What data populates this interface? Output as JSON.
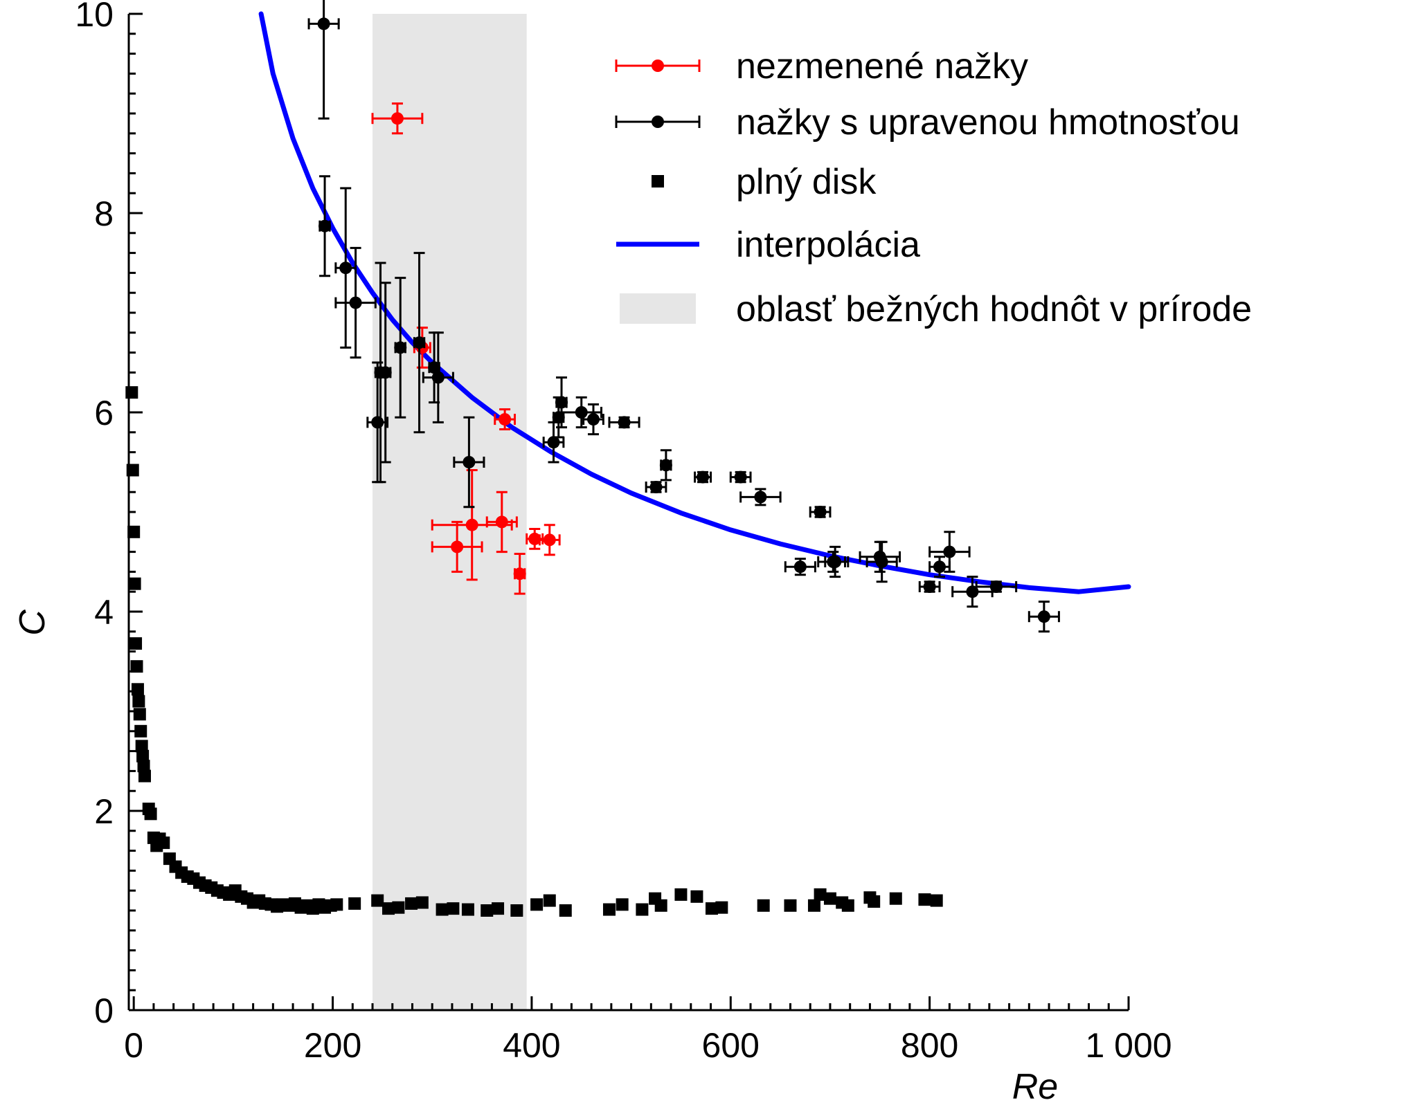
{
  "chart_data": {
    "type": "scatter",
    "title": "",
    "xlabel": "Re",
    "ylabel": "C",
    "xlim": [
      -5,
      1000
    ],
    "ylim": [
      0,
      10
    ],
    "x_ticks": [
      {
        "value": 0,
        "label": "0"
      },
      {
        "value": 200,
        "label": "200"
      },
      {
        "value": 400,
        "label": "400"
      },
      {
        "value": 600,
        "label": "600"
      },
      {
        "value": 800,
        "label": "800"
      },
      {
        "value": 1000,
        "label": "1 000"
      }
    ],
    "y_ticks": [
      {
        "value": 0,
        "label": "0"
      },
      {
        "value": 2,
        "label": "2"
      },
      {
        "value": 4,
        "label": "4"
      },
      {
        "value": 6,
        "label": "6"
      },
      {
        "value": 8,
        "label": "8"
      },
      {
        "value": 10,
        "label": "10"
      }
    ],
    "grid": false,
    "legend_position": "top-right",
    "colors": {
      "red": "#ff0000",
      "black": "#000000",
      "blue": "#0000ff",
      "band": "#e6e6e6"
    },
    "shaded_region": {
      "name": "oblasť bežných hodnôt v prírode",
      "x": [
        240,
        395
      ],
      "color": "#e6e6e6"
    },
    "series": [
      {
        "name": "nezmenené nažky",
        "kind": "errorbar",
        "color": "#ff0000",
        "points": [
          {
            "x": 265,
            "y": 8.95,
            "xerr": 25,
            "yerr": 0.15
          },
          {
            "x": 290,
            "y": 6.65,
            "xerr": 8,
            "yerr": 0.2
          },
          {
            "x": 325,
            "y": 4.65,
            "xerr": 25,
            "yerr": 0.25
          },
          {
            "x": 340,
            "y": 4.87,
            "xerr": 40,
            "yerr": 0.55
          },
          {
            "x": 370,
            "y": 4.9,
            "xerr": 15,
            "yerr": 0.3
          },
          {
            "x": 373,
            "y": 5.93,
            "xerr": 10,
            "yerr": 0.1
          },
          {
            "x": 388,
            "y": 4.38,
            "xerr": 5,
            "yerr": 0.2
          },
          {
            "x": 403,
            "y": 4.73,
            "xerr": 8,
            "yerr": 0.1
          },
          {
            "x": 418,
            "y": 4.72,
            "xerr": 10,
            "yerr": 0.15
          }
        ]
      },
      {
        "name": "nažky s upravenou hmotnosťou",
        "kind": "errorbar",
        "color": "#000000",
        "points": [
          {
            "x": 191,
            "y": 9.9,
            "xerr": 15,
            "yerr": 0.95
          },
          {
            "x": 192,
            "y": 7.87,
            "xerr": 5,
            "yerr": 0.5
          },
          {
            "x": 213,
            "y": 7.45,
            "xerr": 10,
            "yerr": 0.8
          },
          {
            "x": 223,
            "y": 7.1,
            "xerr": 20,
            "yerr": 0.55
          },
          {
            "x": 245,
            "y": 5.9,
            "xerr": 10,
            "yerr": 0.6
          },
          {
            "x": 248,
            "y": 6.4,
            "xerr": 5,
            "yerr": 1.1
          },
          {
            "x": 253,
            "y": 6.4,
            "xerr": 5,
            "yerr": 0.9
          },
          {
            "x": 268,
            "y": 6.65,
            "xerr": 5,
            "yerr": 0.7
          },
          {
            "x": 287,
            "y": 6.7,
            "xerr": 5,
            "yerr": 0.9
          },
          {
            "x": 302,
            "y": 6.45,
            "xerr": 5,
            "yerr": 0.35
          },
          {
            "x": 306,
            "y": 6.35,
            "xerr": 15,
            "yerr": 0.45
          },
          {
            "x": 337,
            "y": 5.5,
            "xerr": 15,
            "yerr": 0.45
          },
          {
            "x": 422,
            "y": 5.7,
            "xerr": 10,
            "yerr": 0.2
          },
          {
            "x": 427,
            "y": 5.95,
            "xerr": 5,
            "yerr": 0.2
          },
          {
            "x": 430,
            "y": 6.1,
            "xerr": 5,
            "yerr": 0.25
          },
          {
            "x": 450,
            "y": 6.0,
            "xerr": 20,
            "yerr": 0.15
          },
          {
            "x": 462,
            "y": 5.93,
            "xerr": 10,
            "yerr": 0.15
          },
          {
            "x": 493,
            "y": 5.9,
            "xerr": 15,
            "yerr": 0.05
          },
          {
            "x": 525,
            "y": 5.25,
            "xerr": 10,
            "yerr": 0.05
          },
          {
            "x": 535,
            "y": 5.47,
            "xerr": 5,
            "yerr": 0.15
          },
          {
            "x": 572,
            "y": 5.35,
            "xerr": 8,
            "yerr": 0.05
          },
          {
            "x": 610,
            "y": 5.35,
            "xerr": 10,
            "yerr": 0.05
          },
          {
            "x": 630,
            "y": 5.15,
            "xerr": 20,
            "yerr": 0.08
          },
          {
            "x": 670,
            "y": 4.45,
            "xerr": 15,
            "yerr": 0.08
          },
          {
            "x": 690,
            "y": 5.0,
            "xerr": 10,
            "yerr": 0.05
          },
          {
            "x": 703,
            "y": 4.5,
            "xerr": 15,
            "yerr": 0.1
          },
          {
            "x": 705,
            "y": 4.5,
            "xerr": 10,
            "yerr": 0.15
          },
          {
            "x": 750,
            "y": 4.55,
            "xerr": 20,
            "yerr": 0.15
          },
          {
            "x": 752,
            "y": 4.5,
            "xerr": 15,
            "yerr": 0.2
          },
          {
            "x": 800,
            "y": 4.25,
            "xerr": 10,
            "yerr": 0.05
          },
          {
            "x": 810,
            "y": 4.45,
            "xerr": 10,
            "yerr": 0.1
          },
          {
            "x": 820,
            "y": 4.6,
            "xerr": 20,
            "yerr": 0.2
          },
          {
            "x": 843,
            "y": 4.2,
            "xerr": 20,
            "yerr": 0.15
          },
          {
            "x": 867,
            "y": 4.25,
            "xerr": 20,
            "yerr": 0.05
          },
          {
            "x": 915,
            "y": 3.95,
            "xerr": 15,
            "yerr": 0.15
          }
        ]
      },
      {
        "name": "plný disk",
        "kind": "scatter-square",
        "color": "#000000",
        "points": [
          {
            "x": -2,
            "y": 6.2
          },
          {
            "x": -1,
            "y": 5.42
          },
          {
            "x": 0,
            "y": 4.8
          },
          {
            "x": 1,
            "y": 4.28
          },
          {
            "x": 2,
            "y": 3.68
          },
          {
            "x": 3,
            "y": 3.45
          },
          {
            "x": 4,
            "y": 3.22
          },
          {
            "x": 5,
            "y": 3.1
          },
          {
            "x": 6,
            "y": 2.97
          },
          {
            "x": 7,
            "y": 2.8
          },
          {
            "x": 8,
            "y": 2.65
          },
          {
            "x": 9,
            "y": 2.55
          },
          {
            "x": 10,
            "y": 2.45
          },
          {
            "x": 11,
            "y": 2.35
          },
          {
            "x": 15,
            "y": 2.02
          },
          {
            "x": 17,
            "y": 1.97
          },
          {
            "x": 20,
            "y": 1.73
          },
          {
            "x": 23,
            "y": 1.65
          },
          {
            "x": 26,
            "y": 1.72
          },
          {
            "x": 30,
            "y": 1.68
          },
          {
            "x": 36,
            "y": 1.52
          },
          {
            "x": 42,
            "y": 1.44
          },
          {
            "x": 48,
            "y": 1.38
          },
          {
            "x": 54,
            "y": 1.34
          },
          {
            "x": 60,
            "y": 1.32
          },
          {
            "x": 66,
            "y": 1.28
          },
          {
            "x": 72,
            "y": 1.25
          },
          {
            "x": 78,
            "y": 1.23
          },
          {
            "x": 84,
            "y": 1.2
          },
          {
            "x": 90,
            "y": 1.18
          },
          {
            "x": 96,
            "y": 1.16
          },
          {
            "x": 102,
            "y": 1.2
          },
          {
            "x": 108,
            "y": 1.14
          },
          {
            "x": 114,
            "y": 1.12
          },
          {
            "x": 120,
            "y": 1.08
          },
          {
            "x": 126,
            "y": 1.1
          },
          {
            "x": 132,
            "y": 1.07
          },
          {
            "x": 138,
            "y": 1.06
          },
          {
            "x": 144,
            "y": 1.04
          },
          {
            "x": 150,
            "y": 1.06
          },
          {
            "x": 156,
            "y": 1.05
          },
          {
            "x": 162,
            "y": 1.07
          },
          {
            "x": 168,
            "y": 1.03
          },
          {
            "x": 174,
            "y": 1.05
          },
          {
            "x": 180,
            "y": 1.02
          },
          {
            "x": 186,
            "y": 1.06
          },
          {
            "x": 192,
            "y": 1.03
          },
          {
            "x": 198,
            "y": 1.05
          },
          {
            "x": 204,
            "y": 1.06
          },
          {
            "x": 222,
            "y": 1.07
          },
          {
            "x": 245,
            "y": 1.1
          },
          {
            "x": 256,
            "y": 1.02
          },
          {
            "x": 266,
            "y": 1.03
          },
          {
            "x": 279,
            "y": 1.07
          },
          {
            "x": 290,
            "y": 1.08
          },
          {
            "x": 310,
            "y": 1.01
          },
          {
            "x": 321,
            "y": 1.02
          },
          {
            "x": 336,
            "y": 1.01
          },
          {
            "x": 355,
            "y": 1.0
          },
          {
            "x": 366,
            "y": 1.02
          },
          {
            "x": 385,
            "y": 1.0
          },
          {
            "x": 405,
            "y": 1.06
          },
          {
            "x": 418,
            "y": 1.1
          },
          {
            "x": 434,
            "y": 1.0
          },
          {
            "x": 478,
            "y": 1.01
          },
          {
            "x": 491,
            "y": 1.06
          },
          {
            "x": 511,
            "y": 1.01
          },
          {
            "x": 524,
            "y": 1.12
          },
          {
            "x": 530,
            "y": 1.05
          },
          {
            "x": 550,
            "y": 1.16
          },
          {
            "x": 566,
            "y": 1.14
          },
          {
            "x": 581,
            "y": 1.02
          },
          {
            "x": 591,
            "y": 1.03
          },
          {
            "x": 633,
            "y": 1.05
          },
          {
            "x": 660,
            "y": 1.05
          },
          {
            "x": 684,
            "y": 1.05
          },
          {
            "x": 690,
            "y": 1.16
          },
          {
            "x": 700,
            "y": 1.12
          },
          {
            "x": 712,
            "y": 1.08
          },
          {
            "x": 718,
            "y": 1.05
          },
          {
            "x": 740,
            "y": 1.13
          },
          {
            "x": 744,
            "y": 1.09
          },
          {
            "x": 766,
            "y": 1.12
          },
          {
            "x": 795,
            "y": 1.11
          },
          {
            "x": 807,
            "y": 1.1
          }
        ]
      },
      {
        "name": "interpolácia",
        "kind": "line",
        "color": "#0000ff",
        "formula_points": [
          {
            "x": 128,
            "y": 10.0
          },
          {
            "x": 140,
            "y": 9.4
          },
          {
            "x": 160,
            "y": 8.75
          },
          {
            "x": 180,
            "y": 8.25
          },
          {
            "x": 200,
            "y": 7.85
          },
          {
            "x": 220,
            "y": 7.5
          },
          {
            "x": 240,
            "y": 7.2
          },
          {
            "x": 260,
            "y": 6.93
          },
          {
            "x": 280,
            "y": 6.7
          },
          {
            "x": 300,
            "y": 6.5
          },
          {
            "x": 340,
            "y": 6.15
          },
          {
            "x": 380,
            "y": 5.85
          },
          {
            "x": 420,
            "y": 5.6
          },
          {
            "x": 460,
            "y": 5.38
          },
          {
            "x": 500,
            "y": 5.19
          },
          {
            "x": 550,
            "y": 4.99
          },
          {
            "x": 600,
            "y": 4.82
          },
          {
            "x": 650,
            "y": 4.68
          },
          {
            "x": 700,
            "y": 4.56
          },
          {
            "x": 750,
            "y": 4.46
          },
          {
            "x": 800,
            "y": 4.37
          },
          {
            "x": 850,
            "y": 4.3
          },
          {
            "x": 900,
            "y": 4.24
          },
          {
            "x": 950,
            "y": 4.2
          },
          {
            "x": 1000,
            "y": 4.25
          }
        ]
      }
    ],
    "legend": [
      {
        "label": "nezmenené nažky",
        "kind": "errorbar",
        "color": "#ff0000"
      },
      {
        "label": "nažky s upravenou hmotnosťou",
        "kind": "errorbar",
        "color": "#000000"
      },
      {
        "label": "plný disk",
        "kind": "square",
        "color": "#000000"
      },
      {
        "label": "interpolácia",
        "kind": "line",
        "color": "#0000ff"
      },
      {
        "label": "oblasť bežných hodnôt v prírode",
        "kind": "band",
        "color": "#e6e6e6"
      }
    ]
  }
}
